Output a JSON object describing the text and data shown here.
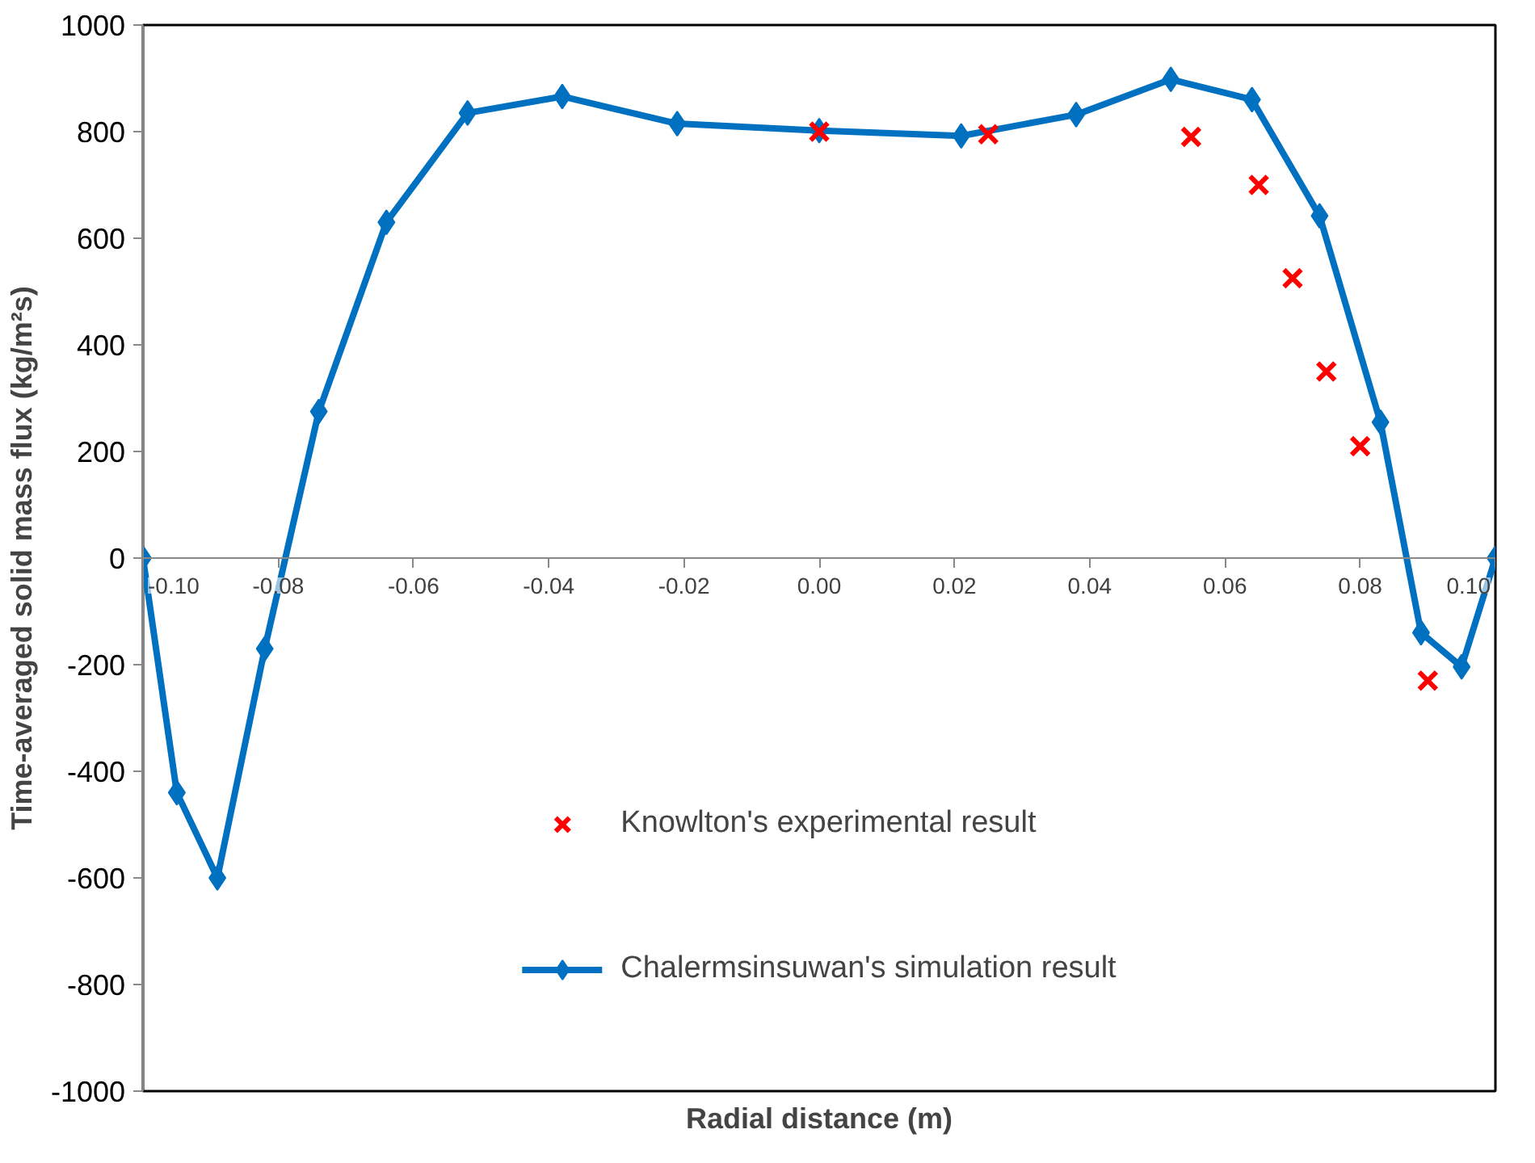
{
  "chart_data": {
    "type": "line",
    "xlabel": "Radial distance (m)",
    "ylabel": "Time-averaged solid mass flux (kg/m²s)",
    "xlim": [
      -0.1,
      0.1
    ],
    "xticks": [
      {
        "value": -0.1,
        "label": "-0.10"
      },
      {
        "value": -0.08,
        "label": "-0.08"
      },
      {
        "value": -0.06,
        "label": "-0.06"
      },
      {
        "value": -0.04,
        "label": "-0.04"
      },
      {
        "value": -0.02,
        "label": "-0.02"
      },
      {
        "value": 0,
        "label": "0.00"
      },
      {
        "value": 0.02,
        "label": "0.02"
      },
      {
        "value": 0.04,
        "label": "0.04"
      },
      {
        "value": 0.06,
        "label": "0.06"
      },
      {
        "value": 0.08,
        "label": "0.08"
      },
      {
        "value": 0.1,
        "label": "0.10"
      }
    ],
    "ylim": [
      -1000,
      1000
    ],
    "yticks": [
      -1000,
      -800,
      -600,
      -400,
      -200,
      0,
      200,
      400,
      600,
      800,
      1000
    ],
    "grid": false,
    "legend": "bottom",
    "series": [
      {
        "name": "Knowlton's experimental result",
        "type": "scatter",
        "marker": "cross",
        "color": "#ff0000",
        "x": [
          0.0,
          0.025,
          0.055,
          0.065,
          0.07,
          0.075,
          0.08,
          0.09
        ],
        "values": [
          800,
          795,
          790,
          700,
          525,
          350,
          210,
          -230
        ]
      },
      {
        "name": "Chalermsinsuwan's simulation result",
        "marker": "diamond",
        "line_style": "solid",
        "color": "#0070c0",
        "x": [
          -0.1,
          -0.095,
          -0.089,
          -0.082,
          -0.074,
          -0.064,
          -0.052,
          -0.038,
          -0.021,
          0.0,
          0.021,
          0.038,
          0.052,
          0.064,
          0.074,
          0.083,
          0.089,
          0.095,
          0.1
        ],
        "values": [
          0,
          -440,
          -600,
          -170,
          275,
          630,
          835,
          866,
          815,
          802,
          792,
          832,
          898,
          860,
          642,
          255,
          -140,
          -204,
          0
        ]
      }
    ]
  }
}
